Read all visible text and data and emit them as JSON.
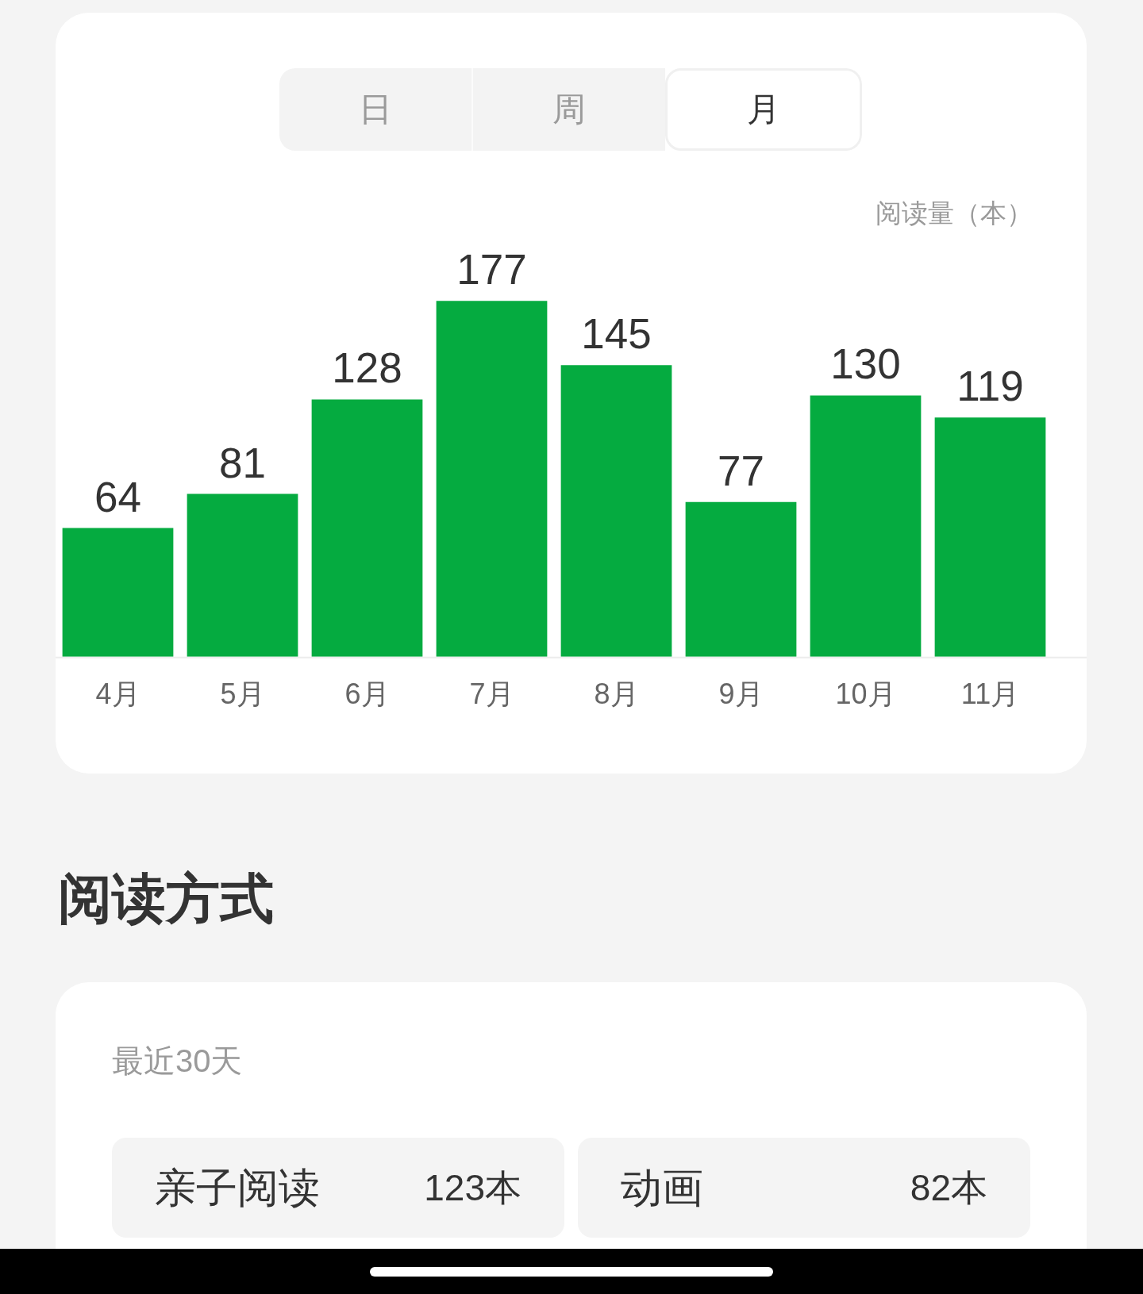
{
  "chart_data": [
    {
      "type": "bar",
      "annotations": [
        "日",
        "周",
        "月"
      ],
      "ylabel": "阅读量（本）",
      "categories": [
        "4月",
        "5月",
        "6月",
        "7月",
        "8月",
        "9月",
        "10月",
        "11月"
      ],
      "values": [
        64,
        81,
        128,
        177,
        145,
        77,
        130,
        119
      ],
      "color": "#05ab40",
      "data_labels": true,
      "tick_labels": "x"
    },
    {
      "type": "other",
      "title": "阅读方式",
      "subtitle": "最近30天",
      "annotations": [
        "亲子阅读",
        "123本",
        "动画",
        "82本"
      ]
    }
  ]
}
